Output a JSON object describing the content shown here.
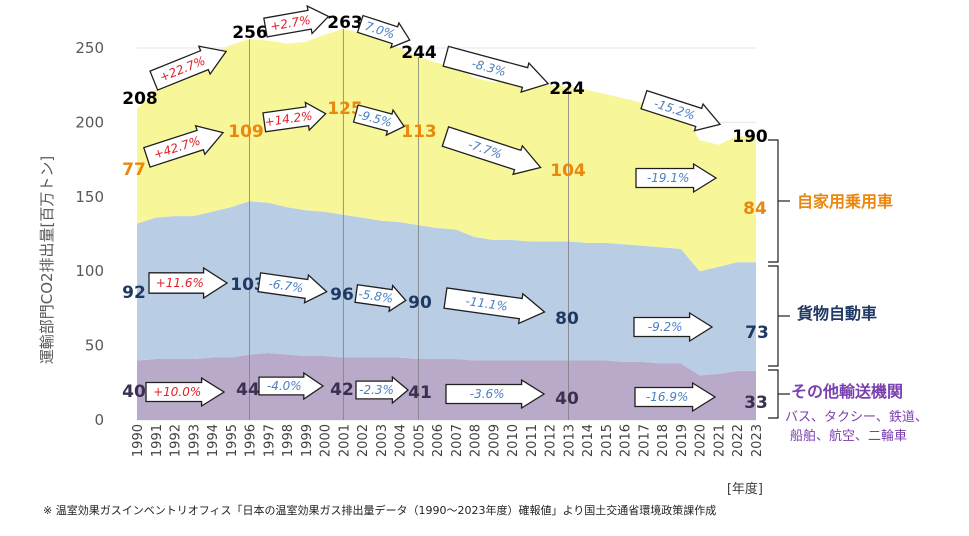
{
  "chart_data": {
    "type": "area",
    "ylabel": "運輸部門CO2排出量[百万トン]",
    "xlabel_unit": "[年度]",
    "ylim": [
      0,
      250
    ],
    "yticks": [
      0,
      50,
      100,
      150,
      200,
      250
    ],
    "x": [
      "1990",
      "1991",
      "1992",
      "1993",
      "1994",
      "1995",
      "1996",
      "1997",
      "1998",
      "1999",
      "2000",
      "2001",
      "2002",
      "2003",
      "2004",
      "2005",
      "2006",
      "2007",
      "2008",
      "2009",
      "2010",
      "2011",
      "2012",
      "2013",
      "2014",
      "2015",
      "2016",
      "2017",
      "2018",
      "2019",
      "2020",
      "2021",
      "2022",
      "2023"
    ],
    "series": [
      {
        "name": "その他輸送機関",
        "color": "#b9aac9",
        "values": [
          40,
          41,
          41,
          41,
          42,
          42,
          44,
          45,
          44,
          43,
          43,
          42,
          42,
          42,
          42,
          41,
          41,
          41,
          40,
          40,
          40,
          40,
          40,
          40,
          40,
          40,
          39,
          39,
          38,
          38,
          30,
          31,
          33,
          33
        ]
      },
      {
        "name": "貨物自動車",
        "color": "#b9cde4",
        "values": [
          92,
          95,
          96,
          96,
          98,
          101,
          103,
          101,
          99,
          98,
          97,
          96,
          94,
          92,
          91,
          90,
          88,
          87,
          83,
          81,
          81,
          80,
          80,
          80,
          79,
          79,
          79,
          78,
          78,
          77,
          70,
          72,
          73,
          73
        ]
      },
      {
        "name": "自家用乗用車",
        "color": "#f7f79a",
        "values": [
          77,
          86,
          94,
          103,
          106,
          109,
          109,
          109,
          110,
          113,
          119,
          125,
          124,
          121,
          117,
          113,
          111,
          109,
          107,
          106,
          107,
          106,
          105,
          104,
          103,
          100,
          98,
          96,
          95,
          94,
          88,
          82,
          85,
          84
        ]
      }
    ],
    "totals": [
      {
        "year": "1990",
        "value": "208"
      },
      {
        "year": "1996",
        "value": "256"
      },
      {
        "year": "2001",
        "value": "263"
      },
      {
        "year": "2005",
        "value": "244"
      },
      {
        "year": "2013",
        "value": "224"
      },
      {
        "year": "2023",
        "value": "190"
      }
    ],
    "car_labels": [
      {
        "year": "1990",
        "value": "77"
      },
      {
        "year": "1996",
        "value": "109"
      },
      {
        "year": "2001",
        "value": "125"
      },
      {
        "year": "2005",
        "value": "113"
      },
      {
        "year": "2013",
        "value": "104"
      },
      {
        "year": "2023",
        "value": "84"
      }
    ],
    "freight_labels": [
      {
        "year": "1990",
        "value": "92"
      },
      {
        "year": "1996",
        "value": "103"
      },
      {
        "year": "2001",
        "value": "96"
      },
      {
        "year": "2005",
        "value": "90"
      },
      {
        "year": "2013",
        "value": "80"
      },
      {
        "year": "2023",
        "value": "73"
      }
    ],
    "other_labels": [
      {
        "year": "1990",
        "value": "40"
      },
      {
        "year": "1996",
        "value": "44"
      },
      {
        "year": "2001",
        "value": "42"
      },
      {
        "year": "2005",
        "value": "41"
      },
      {
        "year": "2013",
        "value": "40"
      },
      {
        "year": "2023",
        "value": "33"
      }
    ],
    "change_arrows": {
      "total": [
        "+22.7%",
        "+2.7%",
        "7.0%",
        "-8.3%",
        "-15.2%"
      ],
      "car": [
        "+42.7%",
        "+14.2%",
        "-9.5%",
        "-7.7%",
        "-19.1%"
      ],
      "freight": [
        "+11.6%",
        "-6.7%",
        "-5.8%",
        "-11.1%",
        "-9.2%"
      ],
      "other": [
        "+10.0%",
        "-4.0%",
        "-2.3%",
        "-3.6%",
        "-16.9%"
      ]
    },
    "categories_right": {
      "car": "自家用乗用車",
      "freight": "貨物自動車",
      "other": "その他輸送機関",
      "other_sub1": "バス、タクシー、鉄道、",
      "other_sub2": "船舶、航空、二輪車"
    },
    "colors": {
      "car_text": "#e9870f",
      "freight_text": "#203864",
      "other_text": "#7b3fb0",
      "increase": "#e0202a",
      "decrease": "#4a7fc1"
    }
  },
  "footnote": "※ 温室効果ガスインベントリオフィス「日本の温室効果ガス排出量データ（1990～2023年度）確報値」より国土交通省環境政策課作成"
}
